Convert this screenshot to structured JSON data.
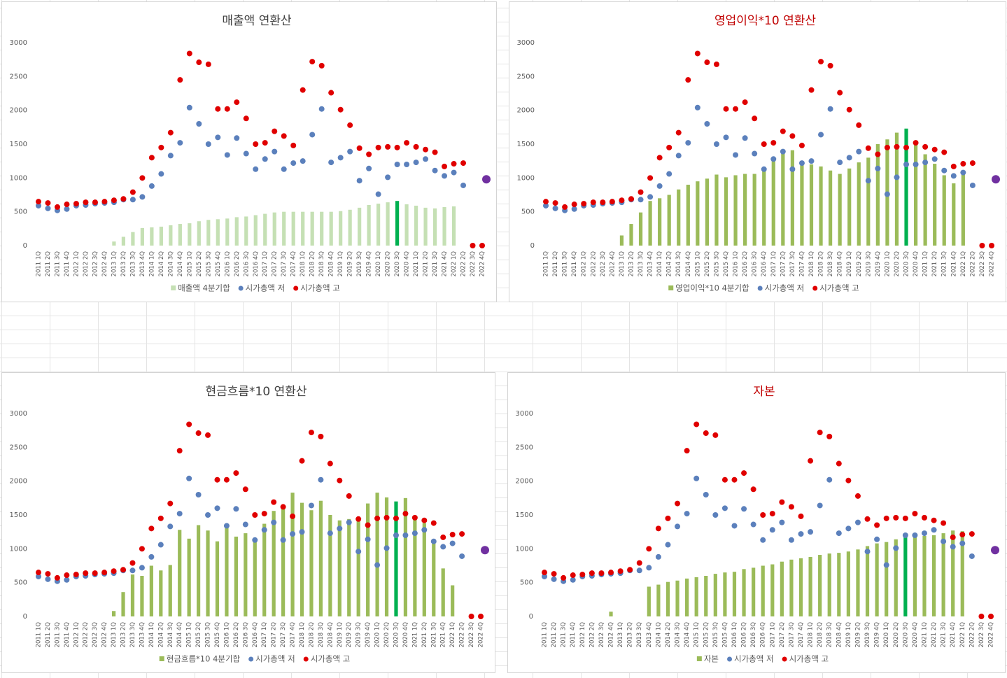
{
  "chart_data": [
    {
      "type": "bar",
      "title": "매출액 연환산",
      "title_color": "#404040",
      "categories": [
        "2011 1Q",
        "2011 2Q",
        "2011 3Q",
        "2011 4Q",
        "2012 1Q",
        "2012 2Q",
        "2012 3Q",
        "2012 4Q",
        "2013 1Q",
        "2013 2Q",
        "2013 3Q",
        "2013 4Q",
        "2014 1Q",
        "2014 2Q",
        "2014 3Q",
        "2014 4Q",
        "2015 1Q",
        "2015 2Q",
        "2015 3Q",
        "2015 4Q",
        "2016 1Q",
        "2016 2Q",
        "2016 3Q",
        "2016 4Q",
        "2017 1Q",
        "2017 2Q",
        "2017 3Q",
        "2017 4Q",
        "2018 1Q",
        "2018 2Q",
        "2018 3Q",
        "2018 4Q",
        "2019 1Q",
        "2019 2Q",
        "2019 3Q",
        "2019 4Q",
        "2020 1Q",
        "2020 2Q",
        "2020 3Q",
        "2020 4Q",
        "2021 1Q",
        "2021 2Q",
        "2021 3Q",
        "2021 4Q",
        "2022 1Q",
        "2022 2Q",
        "2022 3Q",
        "2022 4Q"
      ],
      "ylim": [
        0,
        3000
      ],
      "yticks": [
        0,
        500,
        1000,
        1500,
        2000,
        2500,
        3000
      ],
      "grid": false,
      "legend": "bottom",
      "series": [
        {
          "name": "매출액 4분기합",
          "type": "bar",
          "color": "#c5e0b4",
          "highlight": {
            "category": "2020 3Q",
            "color": "#00b050"
          },
          "values": [
            null,
            null,
            null,
            null,
            null,
            null,
            null,
            null,
            60,
            130,
            200,
            260,
            270,
            280,
            300,
            320,
            330,
            360,
            380,
            390,
            400,
            420,
            430,
            450,
            470,
            490,
            500,
            500,
            500,
            500,
            500,
            500,
            510,
            530,
            560,
            600,
            620,
            640,
            660,
            610,
            590,
            560,
            550,
            570,
            580,
            null,
            null,
            null
          ]
        },
        {
          "name": "시가총액 저",
          "type": "scatter",
          "color": "#5b80bc",
          "values": [
            590,
            550,
            520,
            540,
            590,
            600,
            620,
            630,
            640,
            680,
            680,
            720,
            880,
            1060,
            1330,
            1520,
            2040,
            1800,
            1500,
            1600,
            1340,
            1590,
            1360,
            1130,
            1280,
            1390,
            1130,
            1220,
            1250,
            1640,
            2020,
            1230,
            1300,
            1390,
            960,
            1140,
            760,
            1010,
            1200,
            1200,
            1230,
            1280,
            1110,
            1030,
            1080,
            890,
            null,
            null
          ]
        },
        {
          "name": "시가총액 고",
          "type": "scatter",
          "color": "#e00000",
          "values": [
            650,
            630,
            570,
            610,
            620,
            640,
            640,
            650,
            670,
            690,
            790,
            1000,
            1300,
            1450,
            1670,
            2450,
            2840,
            2710,
            2680,
            2020,
            2020,
            2120,
            1880,
            1500,
            1520,
            1690,
            1620,
            1480,
            2300,
            2720,
            2660,
            2260,
            2010,
            1780,
            1440,
            1350,
            1450,
            1460,
            1450,
            1520,
            1460,
            1420,
            1380,
            1170,
            1210,
            1220,
            0,
            0
          ]
        }
      ],
      "extra_marker": {
        "value": 980,
        "color": "#7030a0"
      }
    },
    {
      "type": "bar",
      "title": "영업이익*10 연환산",
      "title_color": "#c00000",
      "categories": [
        "2011 1Q",
        "2011 2Q",
        "2011 3Q",
        "2011 4Q",
        "2012 1Q",
        "2012 2Q",
        "2012 3Q",
        "2012 4Q",
        "2013 1Q",
        "2013 2Q",
        "2013 3Q",
        "2013 4Q",
        "2014 1Q",
        "2014 2Q",
        "2014 3Q",
        "2014 4Q",
        "2015 1Q",
        "2015 2Q",
        "2015 3Q",
        "2015 4Q",
        "2016 1Q",
        "2016 2Q",
        "2016 3Q",
        "2016 4Q",
        "2017 1Q",
        "2017 2Q",
        "2017 3Q",
        "2017 4Q",
        "2018 1Q",
        "2018 2Q",
        "2018 3Q",
        "2018 4Q",
        "2019 1Q",
        "2019 2Q",
        "2019 3Q",
        "2019 4Q",
        "2020 1Q",
        "2020 2Q",
        "2020 3Q",
        "2020 4Q",
        "2021 1Q",
        "2021 2Q",
        "2021 3Q",
        "2021 4Q",
        "2022 1Q",
        "2022 2Q",
        "2022 3Q",
        "2022 4Q"
      ],
      "ylim": [
        0,
        3000
      ],
      "yticks": [
        0,
        500,
        1000,
        1500,
        2000,
        2500,
        3000
      ],
      "grid": false,
      "legend": "bottom",
      "series": [
        {
          "name": "영업이익*10 4분기합",
          "type": "bar",
          "color": "#9bbb59",
          "highlight": {
            "category": "2020 3Q",
            "color": "#00b050"
          },
          "values": [
            null,
            null,
            null,
            null,
            null,
            null,
            null,
            null,
            150,
            320,
            490,
            660,
            700,
            750,
            830,
            900,
            950,
            990,
            1050,
            1010,
            1040,
            1060,
            1060,
            1140,
            1250,
            1380,
            1410,
            1250,
            1200,
            1170,
            1110,
            1060,
            1140,
            1230,
            1300,
            1500,
            1570,
            1670,
            1730,
            1500,
            1350,
            1210,
            1040,
            920,
            1080,
            null,
            null,
            null
          ]
        },
        {
          "name": "시가총액 저",
          "type": "scatter",
          "color": "#5b80bc",
          "values": [
            590,
            550,
            520,
            540,
            590,
            600,
            620,
            630,
            640,
            680,
            680,
            720,
            880,
            1060,
            1330,
            1520,
            2040,
            1800,
            1500,
            1600,
            1340,
            1590,
            1360,
            1130,
            1280,
            1390,
            1130,
            1220,
            1250,
            1640,
            2020,
            1230,
            1300,
            1390,
            960,
            1140,
            760,
            1010,
            1200,
            1200,
            1230,
            1280,
            1110,
            1030,
            1080,
            890,
            null,
            null
          ]
        },
        {
          "name": "시가총액 고",
          "type": "scatter",
          "color": "#e00000",
          "values": [
            650,
            630,
            570,
            610,
            620,
            640,
            640,
            650,
            670,
            690,
            790,
            1000,
            1300,
            1450,
            1670,
            2450,
            2840,
            2710,
            2680,
            2020,
            2020,
            2120,
            1880,
            1500,
            1520,
            1690,
            1620,
            1480,
            2300,
            2720,
            2660,
            2260,
            2010,
            1780,
            1440,
            1350,
            1450,
            1460,
            1450,
            1520,
            1460,
            1420,
            1380,
            1170,
            1210,
            1220,
            0,
            0
          ]
        }
      ],
      "extra_marker": {
        "value": 980,
        "color": "#7030a0"
      }
    },
    {
      "type": "bar",
      "title": "현금흐름*10 연환산",
      "title_color": "#404040",
      "categories": [
        "2011 1Q",
        "2011 2Q",
        "2011 3Q",
        "2011 4Q",
        "2012 1Q",
        "2012 2Q",
        "2012 3Q",
        "2012 4Q",
        "2013 1Q",
        "2013 2Q",
        "2013 3Q",
        "2013 4Q",
        "2014 1Q",
        "2014 2Q",
        "2014 3Q",
        "2014 4Q",
        "2015 1Q",
        "2015 2Q",
        "2015 3Q",
        "2015 4Q",
        "2016 1Q",
        "2016 2Q",
        "2016 3Q",
        "2016 4Q",
        "2017 1Q",
        "2017 2Q",
        "2017 3Q",
        "2017 4Q",
        "2018 1Q",
        "2018 2Q",
        "2018 3Q",
        "2018 4Q",
        "2019 1Q",
        "2019 2Q",
        "2019 3Q",
        "2019 4Q",
        "2020 1Q",
        "2020 2Q",
        "2020 3Q",
        "2020 4Q",
        "2021 1Q",
        "2021 2Q",
        "2021 3Q",
        "2021 4Q",
        "2022 1Q",
        "2022 2Q",
        "2022 3Q",
        "2022 4Q"
      ],
      "ylim": [
        0,
        3000
      ],
      "yticks": [
        0,
        500,
        1000,
        1500,
        2000,
        2500,
        3000
      ],
      "grid": false,
      "legend": "bottom",
      "series": [
        {
          "name": "현금흐름*10 4분기합",
          "type": "bar",
          "color": "#9bbb59",
          "highlight": {
            "category": "2020 3Q",
            "color": "#00b050"
          },
          "values": [
            null,
            null,
            null,
            null,
            null,
            null,
            null,
            null,
            80,
            360,
            620,
            600,
            750,
            680,
            760,
            1280,
            1150,
            1350,
            1270,
            1110,
            1360,
            1180,
            1230,
            1140,
            1370,
            1560,
            1620,
            1830,
            1680,
            1570,
            1710,
            1500,
            1420,
            1440,
            1430,
            1670,
            1830,
            1760,
            1700,
            1750,
            1450,
            1380,
            1130,
            710,
            460,
            null,
            null,
            null
          ]
        },
        {
          "name": "시가총액 저",
          "type": "scatter",
          "color": "#5b80bc",
          "values": [
            590,
            550,
            520,
            540,
            590,
            600,
            620,
            630,
            640,
            680,
            680,
            720,
            880,
            1060,
            1330,
            1520,
            2040,
            1800,
            1500,
            1600,
            1340,
            1590,
            1360,
            1130,
            1280,
            1390,
            1130,
            1220,
            1250,
            1640,
            2020,
            1230,
            1300,
            1390,
            960,
            1140,
            760,
            1010,
            1200,
            1200,
            1230,
            1280,
            1110,
            1030,
            1080,
            890,
            null,
            null
          ]
        },
        {
          "name": "시가총액 고",
          "type": "scatter",
          "color": "#e00000",
          "values": [
            650,
            630,
            570,
            610,
            620,
            640,
            640,
            650,
            670,
            690,
            790,
            1000,
            1300,
            1450,
            1670,
            2450,
            2840,
            2710,
            2680,
            2020,
            2020,
            2120,
            1880,
            1500,
            1520,
            1690,
            1620,
            1480,
            2300,
            2720,
            2660,
            2260,
            2010,
            1780,
            1440,
            1350,
            1450,
            1460,
            1450,
            1520,
            1460,
            1420,
            1380,
            1170,
            1210,
            1220,
            0,
            0
          ]
        }
      ],
      "extra_marker": {
        "value": 980,
        "color": "#7030a0"
      }
    },
    {
      "type": "bar",
      "title": "자본",
      "title_color": "#c00000",
      "categories": [
        "2011 1Q",
        "2011 2Q",
        "2011 3Q",
        "2011 4Q",
        "2012 1Q",
        "2012 2Q",
        "2012 3Q",
        "2012 4Q",
        "2013 1Q",
        "2013 2Q",
        "2013 3Q",
        "2013 4Q",
        "2014 1Q",
        "2014 2Q",
        "2014 3Q",
        "2014 4Q",
        "2015 1Q",
        "2015 2Q",
        "2015 3Q",
        "2015 4Q",
        "2016 1Q",
        "2016 2Q",
        "2016 3Q",
        "2016 4Q",
        "2017 1Q",
        "2017 2Q",
        "2017 3Q",
        "2017 4Q",
        "2018 1Q",
        "2018 2Q",
        "2018 3Q",
        "2018 4Q",
        "2019 1Q",
        "2019 2Q",
        "2019 3Q",
        "2019 4Q",
        "2020 1Q",
        "2020 2Q",
        "2020 3Q",
        "2020 4Q",
        "2021 1Q",
        "2021 2Q",
        "2021 3Q",
        "2021 4Q",
        "2022 1Q",
        "2022 2Q",
        "2022 3Q",
        "2022 4Q"
      ],
      "ylim": [
        0,
        3000
      ],
      "yticks": [
        0,
        500,
        1000,
        1500,
        2000,
        2500,
        3000
      ],
      "grid": false,
      "legend": "bottom",
      "series": [
        {
          "name": "자본",
          "type": "bar",
          "color": "#9bbb59",
          "highlight": {
            "category": "2020 3Q",
            "color": "#00b050"
          },
          "values": [
            null,
            null,
            null,
            null,
            null,
            null,
            null,
            70,
            null,
            null,
            null,
            440,
            470,
            510,
            530,
            560,
            580,
            600,
            630,
            650,
            660,
            700,
            720,
            750,
            770,
            810,
            840,
            860,
            880,
            910,
            930,
            940,
            960,
            990,
            1040,
            1080,
            1100,
            1140,
            1170,
            1180,
            1190,
            1200,
            1230,
            1270,
            1260,
            null,
            null,
            null
          ]
        },
        {
          "name": "시가총액 저",
          "type": "scatter",
          "color": "#5b80bc",
          "values": [
            590,
            550,
            520,
            540,
            590,
            600,
            620,
            630,
            640,
            680,
            680,
            720,
            880,
            1060,
            1330,
            1520,
            2040,
            1800,
            1500,
            1600,
            1340,
            1590,
            1360,
            1130,
            1280,
            1390,
            1130,
            1220,
            1250,
            1640,
            2020,
            1230,
            1300,
            1390,
            960,
            1140,
            760,
            1010,
            1200,
            1200,
            1230,
            1280,
            1110,
            1030,
            1080,
            890,
            null,
            null
          ]
        },
        {
          "name": "시가총액 고",
          "type": "scatter",
          "color": "#e00000",
          "values": [
            650,
            630,
            570,
            610,
            620,
            640,
            640,
            650,
            670,
            690,
            790,
            1000,
            1300,
            1450,
            1670,
            2450,
            2840,
            2710,
            2680,
            2020,
            2020,
            2120,
            1880,
            1500,
            1520,
            1690,
            1620,
            1480,
            2300,
            2720,
            2660,
            2260,
            2010,
            1780,
            1440,
            1350,
            1450,
            1460,
            1450,
            1520,
            1460,
            1420,
            1380,
            1170,
            1210,
            1220,
            0,
            0
          ]
        }
      ],
      "extra_marker": {
        "value": 980,
        "color": "#7030a0"
      }
    }
  ]
}
